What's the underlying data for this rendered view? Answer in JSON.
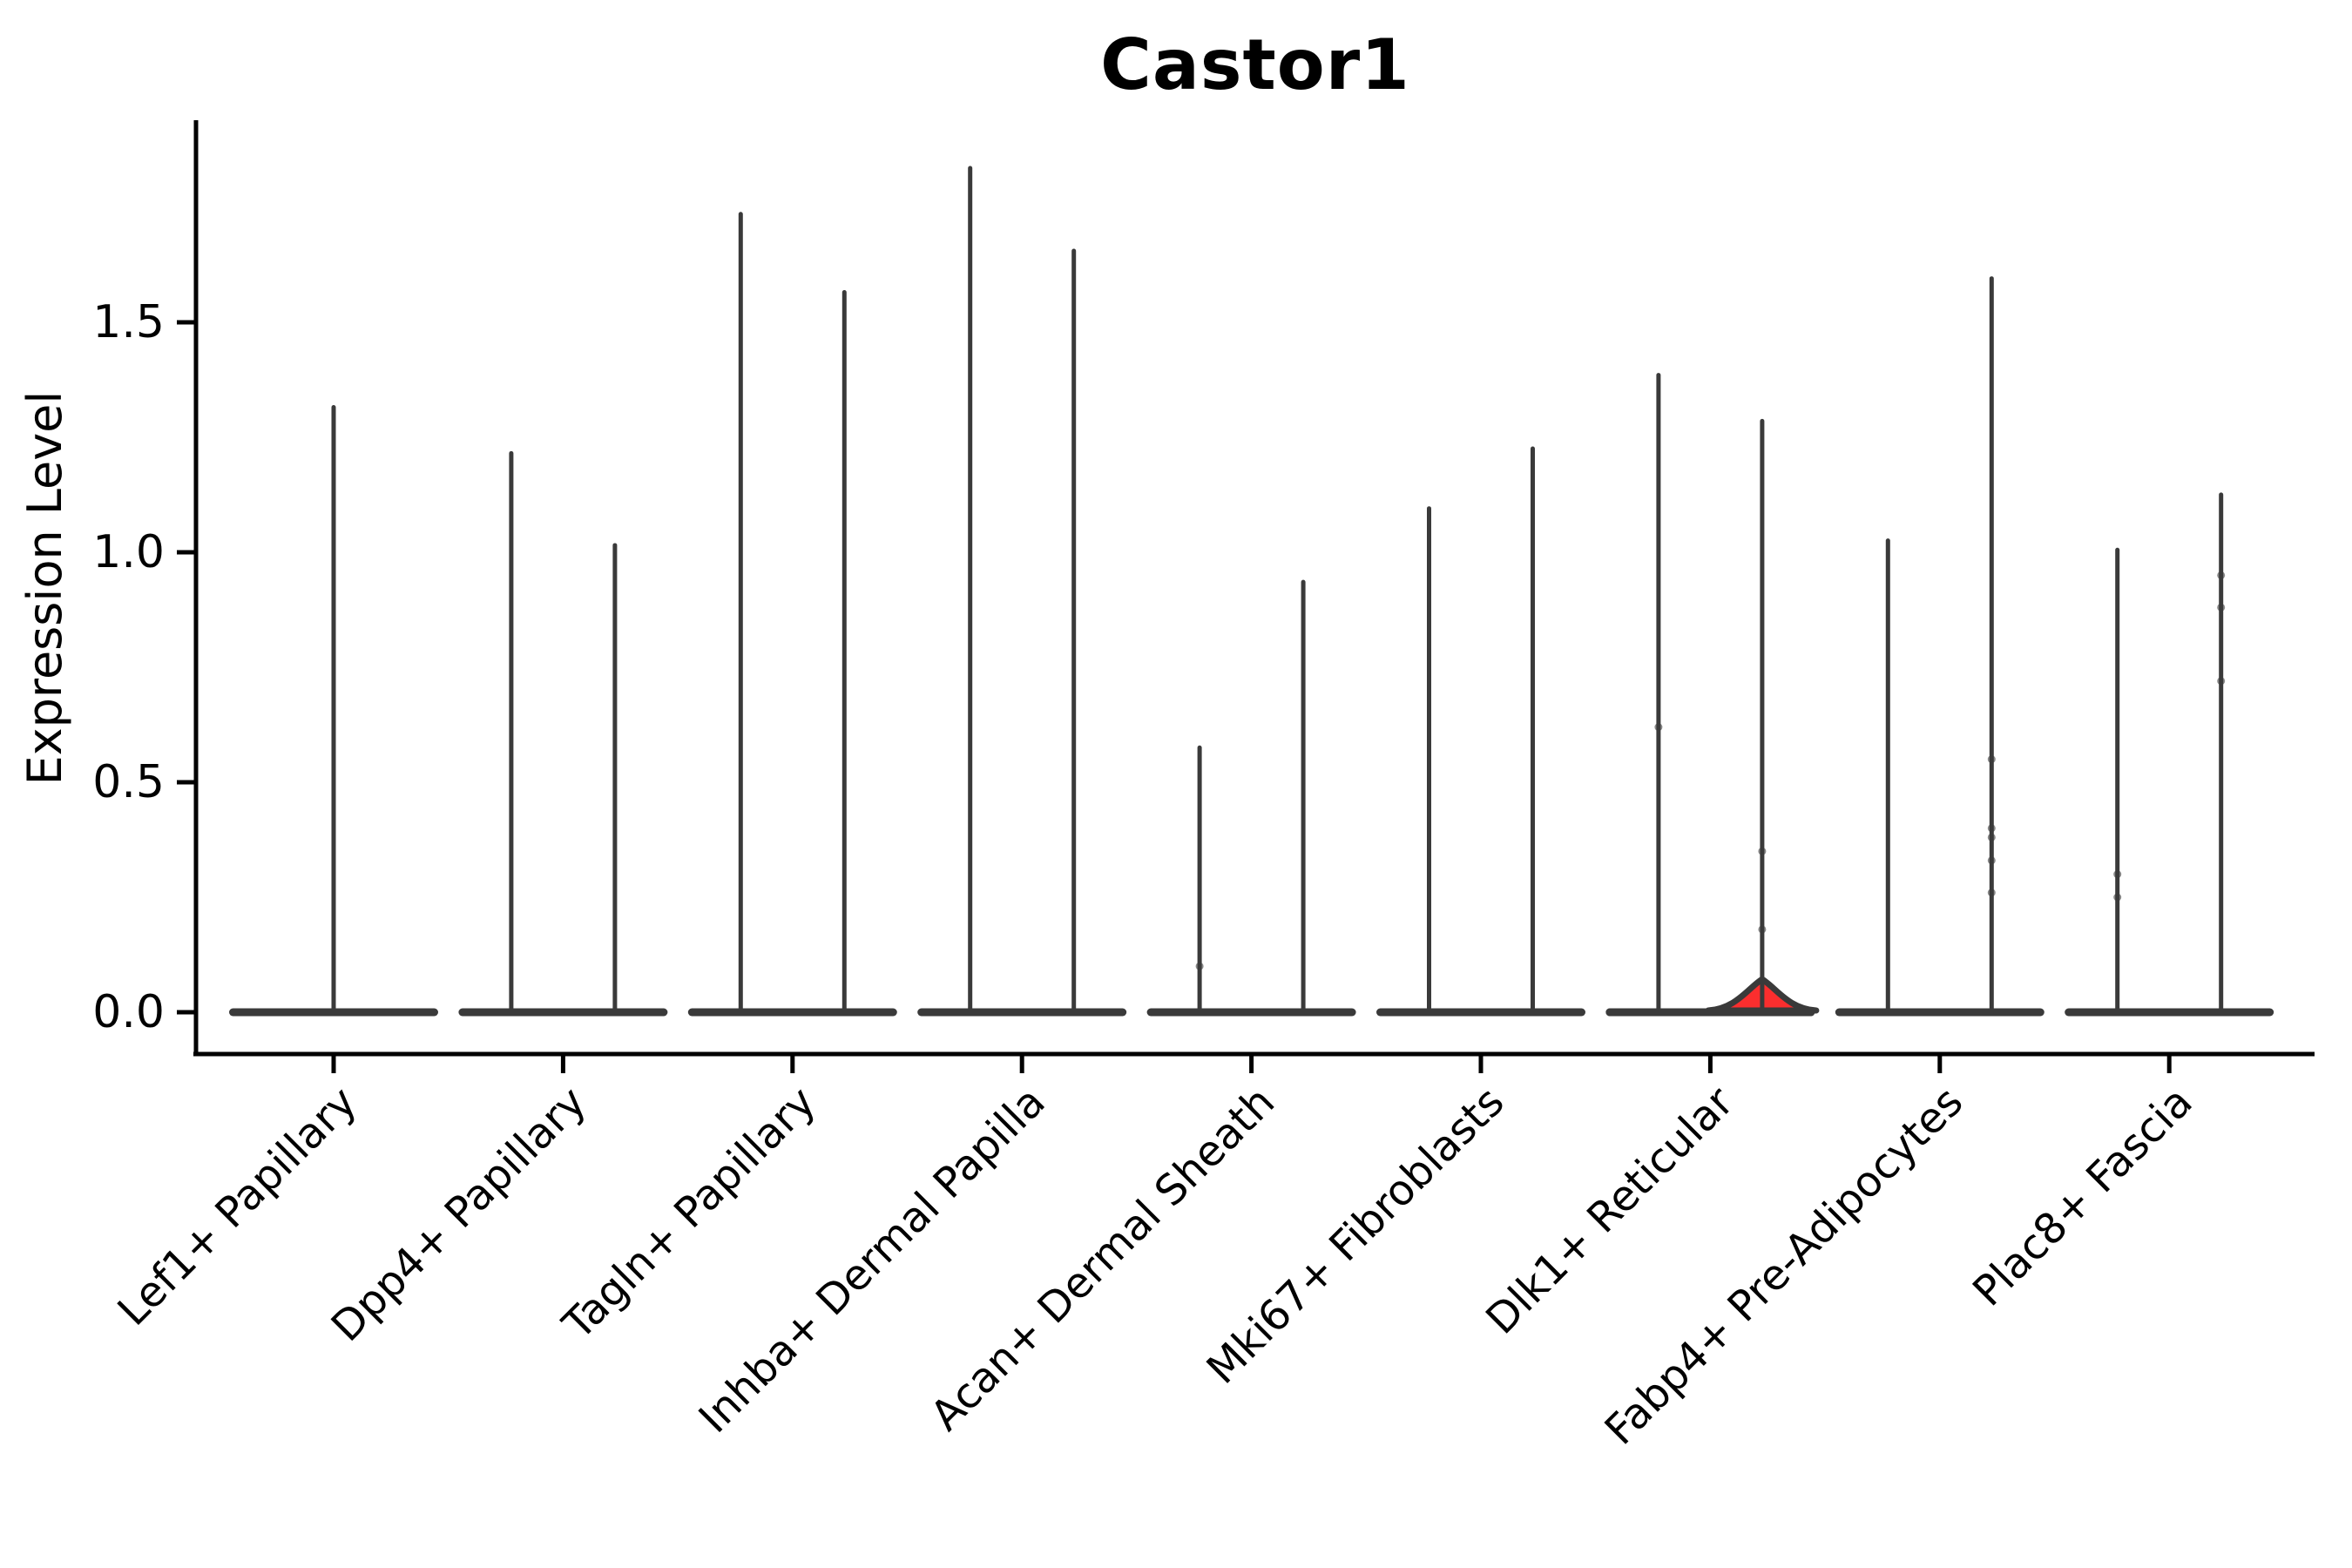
{
  "figure": {
    "title": "Castor1",
    "ylabel": "Expression Level"
  },
  "chart_data": {
    "type": "violin",
    "title": "Castor1",
    "xlabel": "",
    "ylabel": "Expression Level",
    "ylim": [
      0,
      1.95
    ],
    "grid": false,
    "legend": "none",
    "yticks": [
      {
        "value": 0.0,
        "label": "0.0"
      },
      {
        "value": 0.5,
        "label": "0.5"
      },
      {
        "value": 1.0,
        "label": "1.0"
      },
      {
        "value": 1.5,
        "label": "1.5"
      }
    ],
    "categories": [
      "Lef1+ Papillary",
      "Dpp4+ Papillary",
      "Tagln+ Papillary",
      "Inhba+ Dermal Papilla",
      "Acan+ Dermal Sheath",
      "Mki67+ Fibroblasts",
      "Dlk1+ Reticular",
      "Fabp4+ Pre-Adipocytes",
      "Plac8+ Fascia"
    ],
    "violin_style": "split violins collapsed at zero expression; thin vertical spikes mark expression range maxima",
    "violins": [
      {
        "category_index": 0,
        "category": "Lef1+ Papillary",
        "slot": "full",
        "max": 1.32,
        "highlight": false,
        "dots": []
      },
      {
        "category_index": 1,
        "category": "Dpp4+ Papillary",
        "slot": "left",
        "max": 1.22,
        "highlight": false,
        "dots": []
      },
      {
        "category_index": 1,
        "category": "Dpp4+ Papillary",
        "slot": "right",
        "max": 1.02,
        "highlight": false,
        "dots": []
      },
      {
        "category_index": 2,
        "category": "Tagln+ Papillary",
        "slot": "left",
        "max": 1.74,
        "highlight": false,
        "dots": []
      },
      {
        "category_index": 2,
        "category": "Tagln+ Papillary",
        "slot": "right",
        "max": 1.57,
        "highlight": false,
        "dots": []
      },
      {
        "category_index": 3,
        "category": "Inhba+ Dermal Papilla",
        "slot": "left",
        "max": 1.84,
        "highlight": false,
        "dots": []
      },
      {
        "category_index": 3,
        "category": "Inhba+ Dermal Papilla",
        "slot": "right",
        "max": 1.66,
        "highlight": false,
        "dots": []
      },
      {
        "category_index": 4,
        "category": "Acan+ Dermal Sheath",
        "slot": "left",
        "max": 0.58,
        "highlight": false,
        "dots": [
          0.1
        ]
      },
      {
        "category_index": 4,
        "category": "Acan+ Dermal Sheath",
        "slot": "right",
        "max": 0.94,
        "highlight": false,
        "dots": []
      },
      {
        "category_index": 5,
        "category": "Mki67+ Fibroblasts",
        "slot": "left",
        "max": 1.1,
        "highlight": false,
        "dots": []
      },
      {
        "category_index": 5,
        "category": "Mki67+ Fibroblasts",
        "slot": "right",
        "max": 1.23,
        "highlight": false,
        "dots": []
      },
      {
        "category_index": 6,
        "category": "Dlk1+ Reticular",
        "slot": "left",
        "max": 1.39,
        "highlight": false,
        "dots": [
          0.62
        ]
      },
      {
        "category_index": 6,
        "category": "Dlk1+ Reticular",
        "slot": "right",
        "max": 1.29,
        "highlight": true,
        "bump_max": 0.07,
        "dots": [
          0.35,
          0.18
        ]
      },
      {
        "category_index": 7,
        "category": "Fabp4+ Pre-Adipocytes",
        "slot": "left",
        "max": 1.03,
        "highlight": false,
        "dots": []
      },
      {
        "category_index": 7,
        "category": "Fabp4+ Pre-Adipocytes",
        "slot": "right",
        "max": 1.6,
        "highlight": false,
        "dots": [
          0.55,
          0.4,
          0.38,
          0.33,
          0.26
        ]
      },
      {
        "category_index": 8,
        "category": "Plac8+ Fascia",
        "slot": "left",
        "max": 1.01,
        "highlight": false,
        "dots": [
          0.3,
          0.25
        ]
      },
      {
        "category_index": 8,
        "category": "Plac8+ Fascia",
        "slot": "right",
        "max": 1.13,
        "highlight": false,
        "dots": [
          0.95,
          0.88,
          0.72
        ]
      }
    ],
    "colors": {
      "violin": "#3a3a3a",
      "highlight_fill": "#fb2e2e",
      "axis": "#000000",
      "text": "#000000",
      "background": "#ffffff"
    }
  }
}
